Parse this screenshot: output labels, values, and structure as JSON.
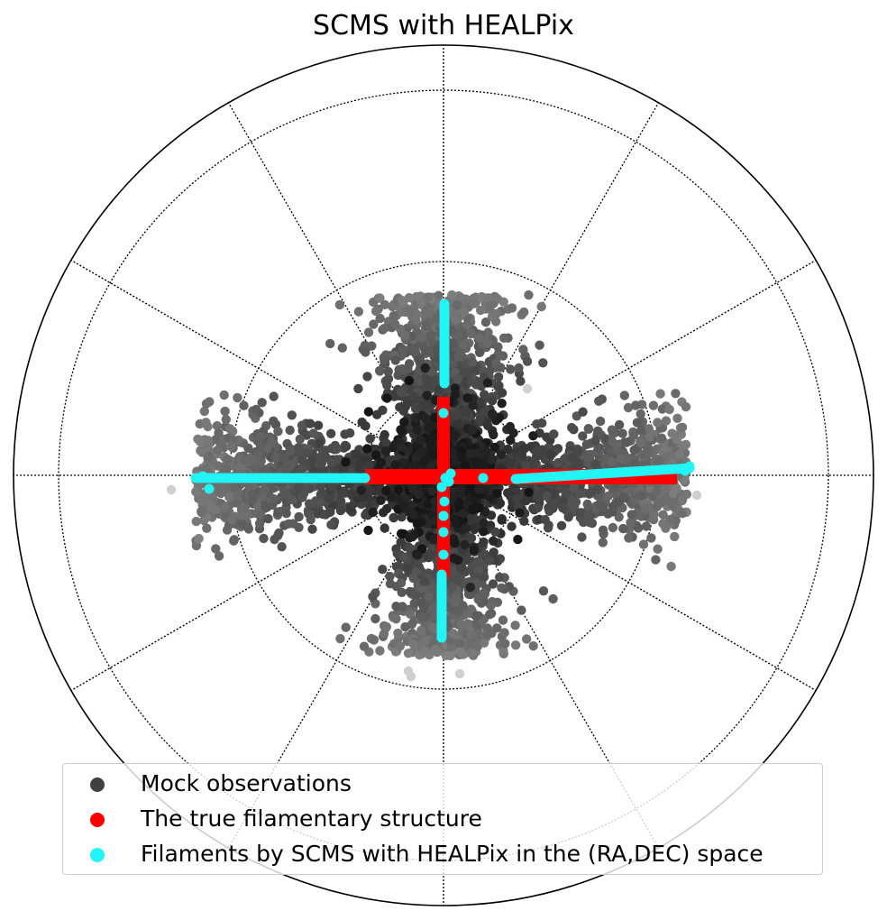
{
  "chart_data": {
    "type": "scatter",
    "projection": "orthographic (polar view)",
    "title": "SCMS with HEALPix",
    "grid": true,
    "legend_position": "bottom",
    "series": [
      {
        "name": "Mock observations",
        "color": "#404040",
        "description_points": "dense cloud of points scattered around four filament arms",
        "points": []
      },
      {
        "name": "The true filamentary structure",
        "color": "#ff0000",
        "segments": [
          {
            "x": [
              -0.36,
              0.54
            ],
            "y": [
              0.0,
              0.0
            ]
          },
          {
            "x": [
              0.0,
              0.0
            ],
            "y": [
              -0.18,
              0.18
            ]
          }
        ]
      },
      {
        "name": "Filaments by SCMS with HEALPix in the (RA,DEC) space",
        "color": "#22f5f5",
        "points": []
      }
    ]
  },
  "legend": {
    "items": [
      {
        "label": "Mock observations",
        "color": "#404040"
      },
      {
        "label": "The true filamentary structure",
        "color": "#ff0000"
      },
      {
        "label": "Filaments by SCMS with HEALPix in the (RA,DEC) space",
        "color": "#22f5f5"
      }
    ]
  }
}
